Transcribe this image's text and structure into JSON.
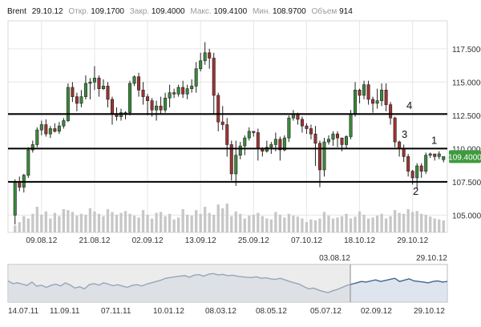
{
  "header": {
    "symbol": "Brent",
    "date": "29.10.12",
    "open_label": "Откр.",
    "open": "109.1700",
    "close_label": "Закр.",
    "close": "109.4000",
    "high_label": "Макс.",
    "high": "109.4100",
    "low_label": "Мин.",
    "low": "108.9700",
    "volume_label": "Объем",
    "volume": "914"
  },
  "colors": {
    "up": "#3a8a3a",
    "down": "#a03232",
    "grid": "#e6e6e6",
    "line": "#000000",
    "price_tag": "#3f9a3f",
    "navigator_line": "#41658f",
    "navigator_fill": "#c8d4e2",
    "navigator_mask": "#dcdcdc",
    "volume": "#c7c7c7"
  },
  "chart_data": {
    "type": "candlestick",
    "y_ticks": [
      "105.0000",
      "107.5000",
      "110.0000",
      "112.5000",
      "115.0000",
      "117.5000"
    ],
    "y_tick_values": [
      105.0,
      107.5,
      110.0,
      112.5,
      115.0,
      117.5
    ],
    "ylim": [
      103.7,
      119.6
    ],
    "x_ticks": [
      "09.08.12",
      "21.08.12",
      "02.09.12",
      "13.09.12",
      "25.09.12",
      "07.10.12",
      "18.10.12",
      "29.10.12"
    ],
    "x_tick_bars": [
      6,
      18,
      30,
      42,
      54,
      66,
      78,
      90
    ],
    "grid": true,
    "last_price": "109.4000",
    "last_value": 109.4,
    "levels": [
      {
        "label": "4",
        "value": 112.6
      },
      {
        "label": "1",
        "value": 110.0
      },
      {
        "label": "2",
        "value": 107.5
      }
    ],
    "annotations": [
      {
        "label": "3",
        "value": 110.7
      }
    ],
    "candles": [
      [
        105.0,
        107.5,
        104.3,
        107.7
      ],
      [
        107.5,
        107.1,
        106.8,
        107.9
      ],
      [
        107.1,
        108.0,
        106.7,
        108.1
      ],
      [
        108.0,
        109.9,
        107.8,
        110.1
      ],
      [
        109.9,
        110.3,
        109.7,
        110.6
      ],
      [
        110.3,
        111.4,
        110.1,
        111.6
      ],
      [
        111.4,
        111.8,
        111.0,
        112.1
      ],
      [
        111.8,
        111.1,
        110.9,
        112.2
      ],
      [
        111.1,
        111.5,
        110.8,
        111.7
      ],
      [
        111.5,
        111.3,
        111.2,
        111.9
      ],
      [
        111.3,
        111.7,
        111.1,
        112.0
      ],
      [
        111.7,
        112.1,
        111.5,
        112.3
      ],
      [
        112.1,
        114.6,
        112.0,
        114.9
      ],
      [
        114.6,
        113.9,
        113.5,
        115.0
      ],
      [
        113.9,
        113.4,
        112.8,
        114.2
      ],
      [
        113.4,
        113.9,
        113.1,
        114.4
      ],
      [
        113.9,
        114.9,
        113.7,
        115.5
      ],
      [
        114.9,
        115.0,
        113.7,
        115.3
      ],
      [
        115.0,
        115.3,
        114.4,
        116.2
      ],
      [
        115.3,
        114.5,
        113.9,
        115.5
      ],
      [
        114.5,
        114.7,
        114.4,
        115.2
      ],
      [
        114.7,
        113.7,
        113.1,
        115.0
      ],
      [
        113.7,
        112.6,
        111.8,
        113.9
      ],
      [
        112.6,
        112.4,
        112.1,
        113.1
      ],
      [
        112.4,
        112.7,
        112.1,
        113.0
      ],
      [
        112.7,
        112.7,
        112.2,
        112.8
      ],
      [
        112.7,
        114.9,
        112.5,
        115.1
      ],
      [
        114.9,
        115.4,
        114.7,
        115.5
      ],
      [
        115.4,
        114.4,
        113.9,
        115.7
      ],
      [
        114.4,
        113.9,
        113.3,
        115.0
      ],
      [
        113.9,
        113.6,
        112.5,
        114.1
      ],
      [
        113.6,
        112.9,
        112.4,
        113.8
      ],
      [
        112.9,
        113.2,
        112.1,
        113.6
      ],
      [
        113.2,
        112.9,
        112.6,
        113.9
      ],
      [
        112.9,
        113.8,
        112.7,
        114.2
      ],
      [
        113.8,
        114.2,
        113.1,
        114.8
      ],
      [
        114.2,
        114.1,
        113.8,
        114.5
      ],
      [
        114.1,
        114.6,
        113.9,
        114.8
      ],
      [
        114.6,
        114.1,
        113.8,
        115.1
      ],
      [
        114.1,
        114.5,
        113.7,
        114.8
      ],
      [
        114.5,
        114.7,
        114.2,
        115.2
      ],
      [
        114.7,
        116.0,
        114.2,
        116.5
      ],
      [
        116.0,
        116.6,
        115.8,
        117.2
      ],
      [
        116.6,
        117.2,
        116.3,
        118.0
      ],
      [
        117.2,
        116.8,
        116.0,
        117.5
      ],
      [
        116.8,
        114.0,
        112.6,
        117.2
      ],
      [
        114.0,
        112.0,
        111.3,
        114.2
      ],
      [
        112.0,
        111.8,
        111.4,
        113.2
      ],
      [
        111.8,
        110.3,
        109.4,
        112.3
      ],
      [
        110.3,
        108.1,
        107.6,
        110.6
      ],
      [
        108.1,
        109.5,
        107.2,
        110.6
      ],
      [
        109.5,
        110.2,
        109.2,
        110.5
      ],
      [
        110.2,
        110.8,
        109.5,
        111.0
      ],
      [
        110.8,
        111.3,
        110.6,
        111.6
      ],
      [
        111.3,
        111.2,
        110.9,
        111.3
      ],
      [
        111.2,
        110.0,
        109.1,
        111.5
      ],
      [
        110.0,
        109.8,
        109.4,
        110.1
      ],
      [
        109.8,
        110.1,
        109.7,
        110.6
      ],
      [
        110.1,
        110.3,
        109.6,
        110.5
      ],
      [
        110.3,
        110.7,
        109.8,
        111.2
      ],
      [
        110.7,
        109.9,
        109.1,
        110.9
      ],
      [
        109.9,
        110.8,
        109.8,
        111.0
      ],
      [
        110.8,
        112.3,
        110.5,
        112.5
      ],
      [
        112.3,
        112.6,
        112.1,
        112.9
      ],
      [
        112.6,
        112.2,
        111.8,
        112.7
      ],
      [
        112.2,
        111.7,
        111.2,
        112.4
      ],
      [
        111.7,
        111.5,
        111.1,
        111.9
      ],
      [
        111.5,
        111.1,
        110.7,
        111.8
      ],
      [
        111.1,
        110.4,
        108.7,
        111.7
      ],
      [
        110.4,
        108.4,
        107.1,
        110.6
      ],
      [
        108.4,
        110.5,
        107.9,
        110.8
      ],
      [
        110.5,
        110.7,
        110.3,
        111.0
      ],
      [
        110.7,
        111.1,
        110.2,
        111.3
      ],
      [
        111.1,
        110.8,
        110.1,
        111.3
      ],
      [
        110.8,
        110.3,
        109.8,
        110.8
      ],
      [
        110.3,
        110.9,
        110.0,
        111.0
      ],
      [
        110.9,
        112.6,
        110.7,
        112.9
      ],
      [
        112.6,
        114.4,
        112.4,
        115.0
      ],
      [
        114.4,
        114.0,
        113.4,
        114.5
      ],
      [
        114.0,
        114.8,
        113.7,
        115.1
      ],
      [
        114.8,
        113.7,
        113.3,
        115.1
      ],
      [
        113.7,
        113.4,
        112.7,
        113.9
      ],
      [
        113.4,
        113.6,
        113.0,
        114.5
      ],
      [
        113.6,
        114.4,
        113.2,
        114.9
      ],
      [
        114.4,
        113.3,
        112.8,
        114.9
      ],
      [
        113.3,
        112.3,
        111.8,
        113.5
      ],
      [
        112.3,
        110.5,
        110.1,
        112.4
      ],
      [
        110.5,
        110.0,
        109.4,
        110.6
      ],
      [
        110.0,
        109.4,
        109.0,
        110.3
      ],
      [
        109.4,
        108.3,
        107.9,
        109.6
      ],
      [
        108.3,
        107.8,
        107.3,
        108.4
      ],
      [
        107.8,
        108.7,
        107.0,
        108.9
      ],
      [
        108.7,
        108.3,
        107.8,
        108.9
      ],
      [
        108.3,
        109.5,
        108.1,
        109.7
      ],
      [
        109.5,
        109.6,
        109.3,
        109.7
      ],
      [
        109.6,
        109.4,
        109.1,
        109.6
      ],
      [
        109.4,
        109.6,
        109.2,
        109.8
      ],
      [
        109.17,
        109.4,
        108.97,
        109.41
      ]
    ],
    "volumes": [
      15,
      22,
      35,
      30,
      40,
      55,
      38,
      45,
      30,
      42,
      35,
      50,
      48,
      44,
      36,
      40,
      38,
      52,
      45,
      40,
      35,
      50,
      44,
      38,
      42,
      46,
      40,
      36,
      32,
      48,
      38,
      30,
      42,
      44,
      35,
      40,
      28,
      32,
      50,
      38,
      36,
      48,
      40,
      55,
      42,
      38,
      60,
      52,
      62,
      35,
      45,
      40,
      30,
      36,
      38,
      42,
      35,
      30,
      28,
      44,
      38,
      32,
      40,
      36,
      34,
      30,
      22,
      28,
      26,
      30,
      44,
      36,
      30,
      32,
      35,
      40,
      30,
      34,
      45,
      38,
      30,
      32,
      36,
      40,
      30,
      35,
      48,
      42,
      40,
      50,
      44,
      46,
      40,
      38,
      34,
      30,
      28,
      26
    ]
  },
  "navigator": {
    "dates": [
      "14.07.11",
      "11.09.11",
      "07.11.11",
      "10.01.12",
      "08.03.12",
      "08.05.12",
      "05.07.12",
      "02.09.12",
      "29.10.12"
    ],
    "range_start": "03.08.12",
    "range_end": "29.10.12",
    "series": [
      0.62,
      0.52,
      0.55,
      0.5,
      0.45,
      0.58,
      0.42,
      0.46,
      0.38,
      0.45,
      0.5,
      0.43,
      0.55,
      0.47,
      0.35,
      0.4,
      0.32,
      0.48,
      0.52,
      0.46,
      0.55,
      0.5,
      0.44,
      0.48,
      0.42,
      0.38,
      0.45,
      0.48,
      0.43,
      0.5,
      0.55,
      0.6,
      0.65,
      0.72,
      0.75,
      0.78,
      0.8,
      0.82,
      0.76,
      0.84,
      0.86,
      0.8,
      0.88,
      0.9,
      0.85,
      0.87,
      0.82,
      0.84,
      0.8,
      0.78,
      0.76,
      0.75,
      0.78,
      0.72,
      0.74,
      0.7,
      0.68,
      0.72,
      0.66,
      0.6,
      0.55,
      0.5,
      0.4,
      0.32,
      0.35,
      0.28,
      0.22,
      0.18,
      0.25,
      0.3,
      0.38,
      0.45,
      0.5,
      0.55,
      0.6,
      0.58,
      0.62,
      0.66,
      0.6,
      0.64,
      0.68,
      0.72,
      0.6,
      0.65,
      0.7,
      0.62,
      0.6,
      0.58,
      0.55,
      0.6,
      0.62,
      0.58,
      0.6
    ]
  }
}
